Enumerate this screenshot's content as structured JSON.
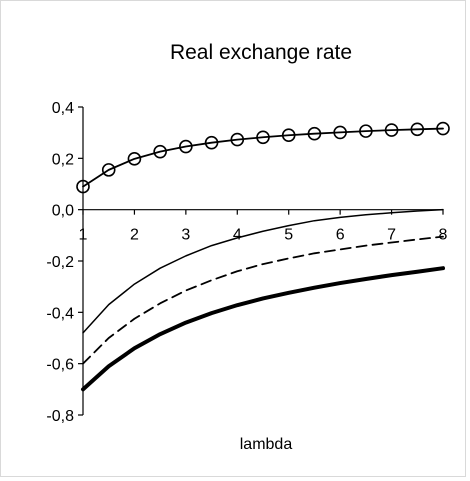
{
  "chart_data": {
    "type": "line",
    "title": "Real exchange rate",
    "xlabel": "lambda",
    "ylabel": "",
    "xlim": [
      1,
      8
    ],
    "ylim": [
      -0.8,
      0.4
    ],
    "grid": false,
    "legend": "none",
    "x_ticks": [
      {
        "value": 1,
        "label": "1"
      },
      {
        "value": 2,
        "label": "2"
      },
      {
        "value": 3,
        "label": "3"
      },
      {
        "value": 4,
        "label": "4"
      },
      {
        "value": 5,
        "label": "5"
      },
      {
        "value": 6,
        "label": "6"
      },
      {
        "value": 7,
        "label": "7"
      },
      {
        "value": 8,
        "label": "8"
      }
    ],
    "y_ticks": [
      {
        "value": 0.4,
        "label": "0,4"
      },
      {
        "value": 0.2,
        "label": "0,2"
      },
      {
        "value": 0.0,
        "label": "0,0"
      },
      {
        "value": -0.2,
        "label": "-0,2"
      },
      {
        "value": -0.4,
        "label": "-0,4"
      },
      {
        "value": -0.6,
        "label": "-0,6"
      },
      {
        "value": -0.8,
        "label": "-0,8"
      }
    ],
    "x": [
      1,
      1.5,
      2,
      2.5,
      3,
      3.5,
      4,
      4.5,
      5,
      5.5,
      6,
      6.5,
      7,
      7.5,
      8
    ],
    "series": [
      {
        "style": "solid-circles",
        "color": "#000000",
        "values": [
          0.09,
          0.155,
          0.198,
          0.226,
          0.246,
          0.261,
          0.273,
          0.282,
          0.29,
          0.296,
          0.301,
          0.306,
          0.31,
          0.313,
          0.316
        ]
      },
      {
        "style": "solid-thin",
        "color": "#000000",
        "values": [
          -0.48,
          -0.37,
          -0.29,
          -0.228,
          -0.18,
          -0.14,
          -0.11,
          -0.084,
          -0.062,
          -0.043,
          -0.03,
          -0.02,
          -0.012,
          -0.005,
          0.0
        ]
      },
      {
        "style": "dashed",
        "color": "#000000",
        "values": [
          -0.6,
          -0.5,
          -0.425,
          -0.365,
          -0.315,
          -0.275,
          -0.24,
          -0.212,
          -0.19,
          -0.17,
          -0.155,
          -0.14,
          -0.128,
          -0.116,
          -0.105
        ]
      },
      {
        "style": "solid-thick",
        "color": "#000000",
        "values": [
          -0.7,
          -0.61,
          -0.54,
          -0.485,
          -0.44,
          -0.403,
          -0.372,
          -0.346,
          -0.324,
          -0.304,
          -0.286,
          -0.27,
          -0.255,
          -0.242,
          -0.228
        ]
      }
    ]
  }
}
